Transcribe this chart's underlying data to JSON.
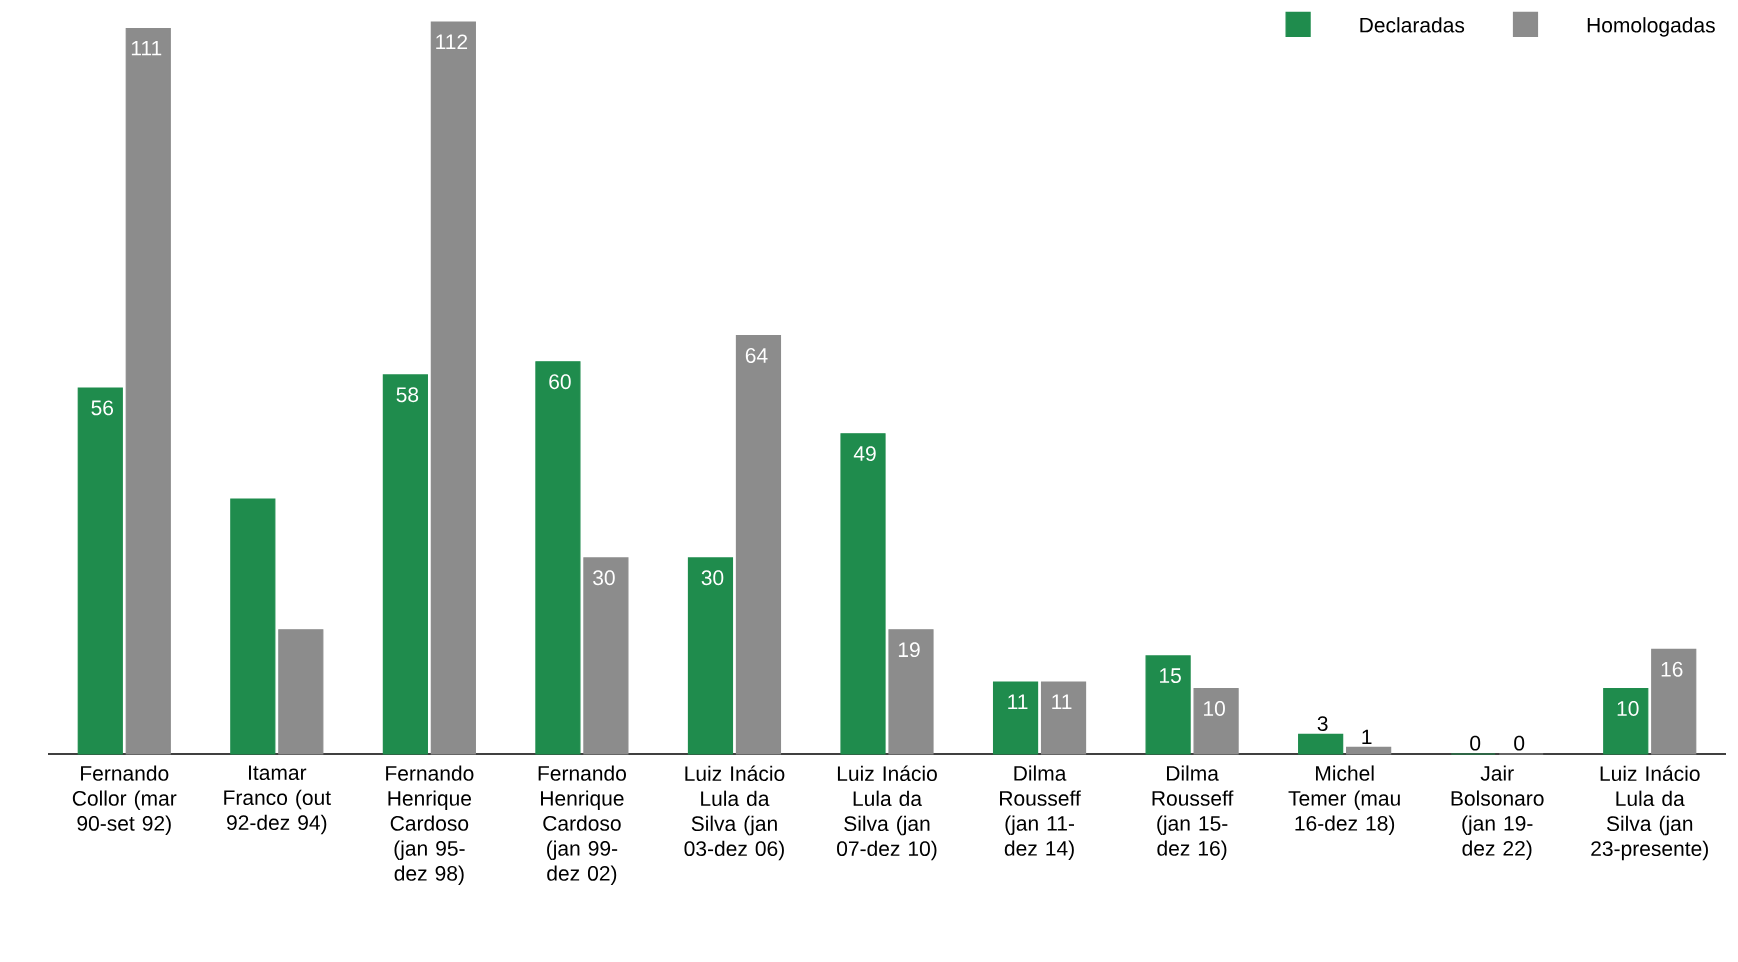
{
  "chart_data": {
    "type": "bar",
    "categories": [
      "Fernando Collor (mar 90-set 92)",
      "Itamar Franco (out 92-dez 94)",
      "Fernando Henrique Cardoso (jan 95-dez 98)",
      "Fernando Henrique Cardoso (jan 99-dez 02)",
      "Luiz Inácio Lula da Silva (jan 03-dez 06)",
      "Luiz Inácio Lula da Silva (jan 07-dez 10)",
      "Dilma Rousseff (jan 11-dez 14)",
      "Dilma Rousseff (jan 15-dez 16)",
      "Michel Temer (mau 16-dez 18)",
      "Jair Bolsonaro (jan 19-dez 22)",
      "Luiz Inácio Lula da Silva (jan 23-presente)"
    ],
    "series": [
      {
        "name": "Declaradas",
        "color": "#1f8c4d",
        "values": [
          56,
          39,
          58,
          60,
          30,
          49,
          11,
          15,
          3,
          0,
          10
        ],
        "value_labels": [
          "56",
          null,
          "58",
          "60",
          "30",
          "49",
          "11",
          "15",
          "3",
          "0",
          "10"
        ]
      },
      {
        "name": "Homologadas",
        "color": "#8c8c8c",
        "values": [
          111,
          19,
          112,
          30,
          64,
          19,
          11,
          10,
          1,
          0,
          16
        ],
        "value_labels": [
          "111",
          null,
          "112",
          "30",
          "64",
          "19",
          "11",
          "10",
          "1",
          "0",
          "16"
        ]
      }
    ],
    "legend": "top right"
  }
}
